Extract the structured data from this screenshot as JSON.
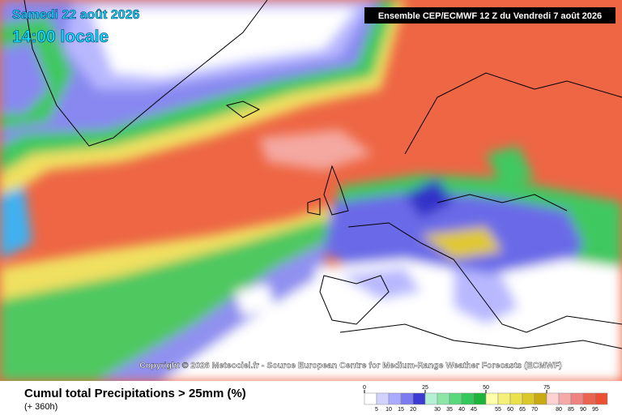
{
  "header": {
    "date": "Samedi 22 août 2026",
    "time": "14:00 locale",
    "run": "Ensemble CEP/ECMWF 12 Z du Vendredi 7 août 2026"
  },
  "copyright": "Copyright © 2026 Meteociel.fr - Source European Centre for Medium-Range Weather Forecasts (ECMWF)",
  "footer": {
    "title": "Cumul total Precipitations > 25mm (%)",
    "lead": "(+ 360h)"
  },
  "legend": {
    "major_ticks": [
      0,
      25,
      50,
      75
    ],
    "minor_ticks": [
      5,
      10,
      15,
      20,
      30,
      35,
      40,
      45,
      55,
      60,
      65,
      70,
      80,
      85,
      90,
      95
    ],
    "colors": [
      "#ffffff",
      "#d2d2ff",
      "#aaaaff",
      "#7c7cf0",
      "#3c3cd2",
      "#b4f0d2",
      "#8ce6a8",
      "#5ad87c",
      "#32c85a",
      "#1eb43c",
      "#ffffaa",
      "#f5f078",
      "#ebe14b",
      "#dcc828",
      "#c8aa14",
      "#ffd2d2",
      "#f5aaaa",
      "#f08282",
      "#eb6450",
      "#eb5032"
    ]
  }
}
